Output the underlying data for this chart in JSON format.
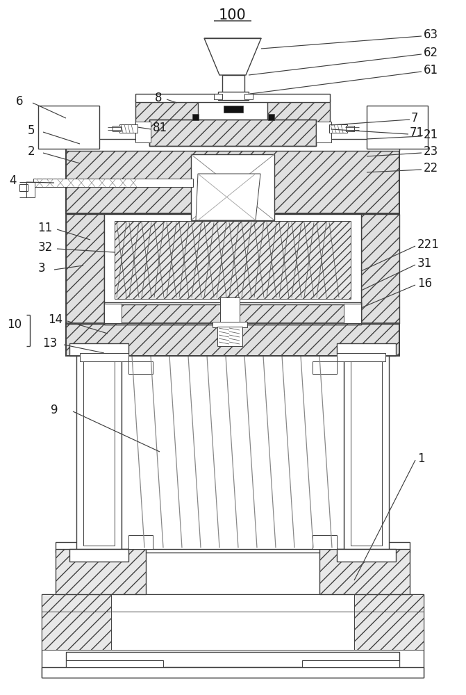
{
  "bg_color": "#ffffff",
  "lc": "#404040",
  "fig_width": 6.71,
  "fig_height": 10.0,
  "hatch_light": "///",
  "hatch_dense": "xxxx"
}
